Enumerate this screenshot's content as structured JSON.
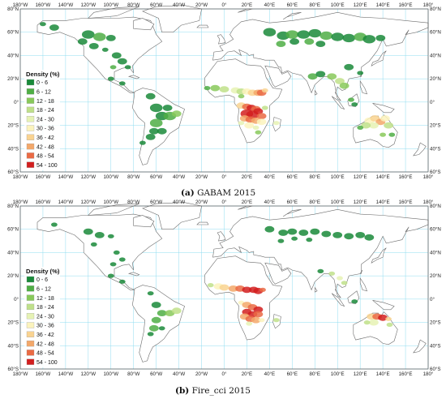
{
  "panels": [
    {
      "id": "a",
      "caption_letter": "(a)",
      "caption_text": " GABAM 2015"
    },
    {
      "id": "b",
      "caption_letter": "(b)",
      "caption_text": " Fire_cci 2015"
    }
  ],
  "axes": {
    "lon_ticks": [
      "180°W",
      "160°W",
      "140°W",
      "120°W",
      "100°W",
      "80°W",
      "60°W",
      "40°W",
      "20°W",
      "0°",
      "20°E",
      "40°E",
      "60°E",
      "80°E",
      "100°E",
      "120°E",
      "140°E",
      "160°E",
      "180°"
    ],
    "lat_ticks": [
      "80°N",
      "60°N",
      "40°N",
      "20°N",
      "0°",
      "20°S",
      "40°S",
      "60°S"
    ]
  },
  "legend": {
    "title": "Density (%)",
    "classes": [
      {
        "label": "0 -  6",
        "color": "#1a8a3a"
      },
      {
        "label": "6 - 12",
        "color": "#4fae45"
      },
      {
        "label": "12 - 18",
        "color": "#88c95a"
      },
      {
        "label": "18 - 24",
        "color": "#bfe08a"
      },
      {
        "label": "24 - 30",
        "color": "#e6f2b4"
      },
      {
        "label": "30 - 36",
        "color": "#fbf3bd"
      },
      {
        "label": "36 - 42",
        "color": "#f9d391"
      },
      {
        "label": "42 - 48",
        "color": "#f3a86a"
      },
      {
        "label": "48 - 54",
        "color": "#ea6a44"
      },
      {
        "label": "54 - 100",
        "color": "#d21f1f"
      }
    ]
  }
}
